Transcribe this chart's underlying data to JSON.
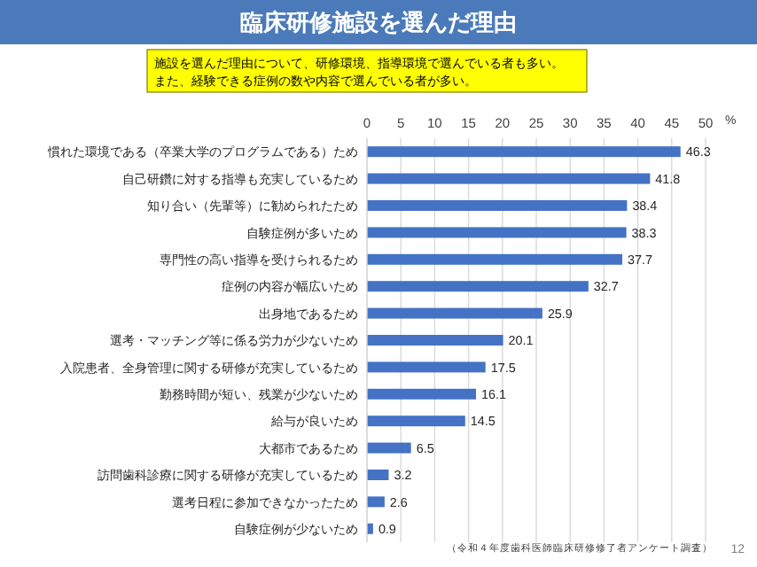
{
  "chart_data": {
    "type": "bar",
    "orientation": "horizontal",
    "title": "臨床研修施設を選んだ理由",
    "subtitle": "施設を選んだ理由について、研修環境、指導環境で選んでいる者も多い。",
    "categories": [
      "慣れた環境である（卒業大学のプログラムである）ため",
      "自己研鑽に対する指導も充実しているため",
      "知り合い（先輩等）に勧められたため",
      "自験症例が多いため",
      "専門性の高い指導を受けられるため",
      "症例の内容が幅広いため",
      "出身地であるため",
      "選考・マッチング等に係る労力が少ないため",
      "入院患者、全身管理に関する研修が充実しているため",
      "勤務時間が短い、残業が少ないため",
      "給与が良いため",
      "大都市であるため",
      "訪問歯科診療に関する研修が充実しているため",
      "選考日程に参加できなかったため",
      "自験症例が少ないため"
    ],
    "values": [
      46.3,
      41.8,
      38.4,
      38.3,
      37.7,
      32.7,
      25.9,
      20.1,
      17.5,
      16.1,
      14.5,
      6.5,
      3.2,
      2.6,
      0.9
    ],
    "color": "#4472c4",
    "xlim": [
      0,
      50
    ],
    "xticks": [
      0,
      5,
      10,
      15,
      20,
      25,
      30,
      35,
      40,
      45,
      50
    ],
    "xlabel": "%",
    "grid": "x",
    "data_labels": true,
    "annotations": [
      "また、経験できる症例の数や内容で選んでいる者が多い。",
      "（令和４年度歯科医師臨床研修修了者アンケート調査）",
      "12"
    ]
  }
}
